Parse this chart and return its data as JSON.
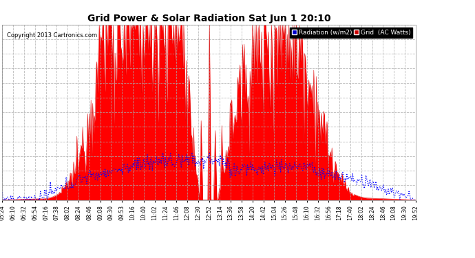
{
  "title": "Grid Power & Solar Radiation Sat Jun 1 20:10",
  "copyright": "Copyright 2013 Cartronics.com",
  "background_color": "#ffffff",
  "plot_bg_color": "#ffffff",
  "grid_color": "#aaaaaa",
  "ymin": -23.0,
  "ymax": 3570.4,
  "yticks": [
    -23.0,
    276.4,
    575.9,
    875.4,
    1174.8,
    1474.3,
    1773.7,
    2073.2,
    2372.6,
    2672.1,
    2971.5,
    3271.0,
    3570.4
  ],
  "x_labels": [
    "05:24",
    "06:10",
    "06:32",
    "06:54",
    "07:16",
    "07:38",
    "08:02",
    "08:24",
    "08:46",
    "09:08",
    "09:30",
    "09:53",
    "10:16",
    "10:40",
    "11:02",
    "11:24",
    "11:46",
    "12:08",
    "12:30",
    "12:52",
    "13:14",
    "13:36",
    "13:58",
    "14:20",
    "14:42",
    "15:04",
    "15:26",
    "15:48",
    "16:10",
    "16:32",
    "16:56",
    "17:18",
    "17:40",
    "18:02",
    "18:24",
    "18:46",
    "19:08",
    "19:30",
    "19:52"
  ],
  "legend_radiation_bg": "#0000cc",
  "legend_grid_bg": "#cc0000",
  "radiation_line_color": "#0000ff",
  "grid_fill_color": "#ff0000",
  "grid_line_color": "#dd0000"
}
